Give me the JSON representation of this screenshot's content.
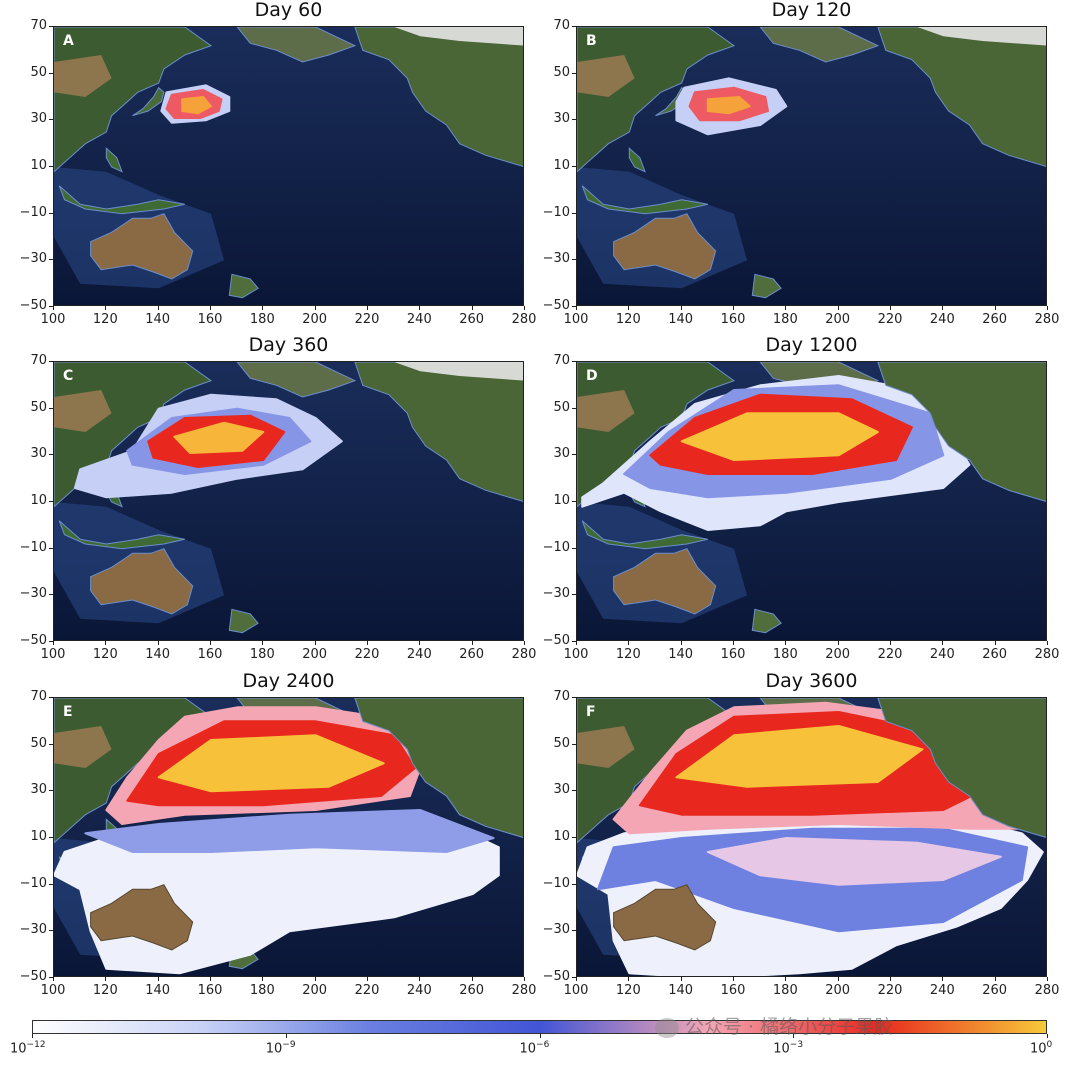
{
  "panels": [
    {
      "label": "A",
      "title": "Day 60"
    },
    {
      "label": "B",
      "title": "Day 120"
    },
    {
      "label": "C",
      "title": "Day 360"
    },
    {
      "label": "D",
      "title": "Day 1200"
    },
    {
      "label": "E",
      "title": "Day 2400"
    },
    {
      "label": "F",
      "title": "Day 3600"
    }
  ],
  "axes": {
    "x_ticks": [
      "100",
      "120",
      "140",
      "160",
      "180",
      "200",
      "220",
      "240",
      "260",
      "280"
    ],
    "y_ticks": [
      "70",
      "50",
      "30",
      "10",
      "−10",
      "−30",
      "−50"
    ]
  },
  "colorbar": {
    "ticks": [
      {
        "base": "10",
        "exp": "−12"
      },
      {
        "base": "10",
        "exp": "−9"
      },
      {
        "base": "10",
        "exp": "−6"
      },
      {
        "base": "10",
        "exp": "−3"
      },
      {
        "base": "10",
        "exp": "0"
      }
    ],
    "colors": [
      "#ffffff",
      "#c8d2f6",
      "#6a7fe0",
      "#4255d6",
      "#f4a6b4",
      "#e8281e",
      "#f7c93a"
    ]
  },
  "watermark": {
    "text": "公众号 · 橘络小分子果胶"
  },
  "colors": {
    "ocean": "#0c1a3c",
    "land": "#3c5a2e",
    "desert": "#8a6a44",
    "plume_high": "#f7c93a",
    "plume_mid": "#e8281e",
    "plume_low": "#6a7fe0"
  }
}
